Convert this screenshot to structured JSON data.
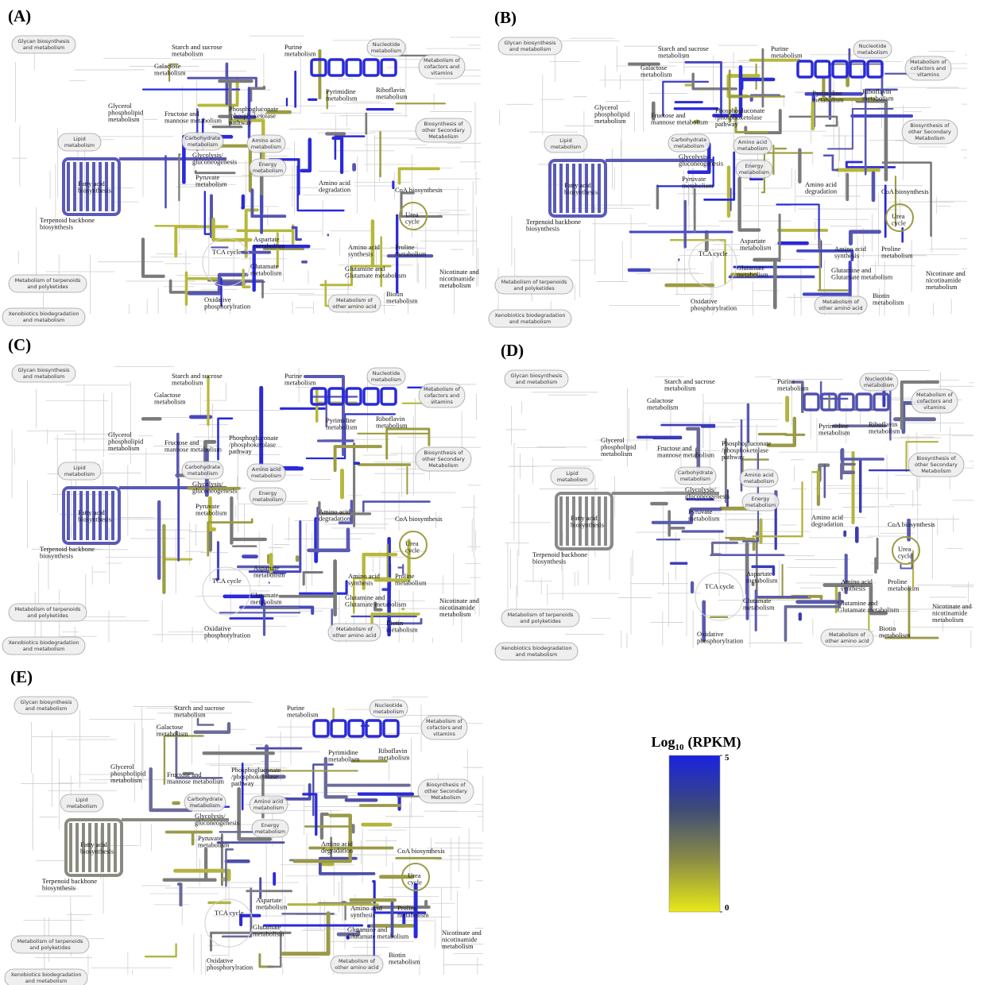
{
  "panels": [
    "(A)",
    "(B)",
    "(C)",
    "(D)",
    "(E)"
  ],
  "pathway_groups": [
    [
      "Glycan biosynthesis",
      "and metabolism"
    ],
    [
      "Nucleotide",
      "metabolism"
    ],
    [
      "Metabolism of",
      "cofactors and",
      "vitamins"
    ],
    [
      "Biosynthesis of",
      "other Secondary",
      "Metabolism"
    ],
    [
      "Lipid",
      "metabolism"
    ],
    [
      "Carbohydrate",
      "metabolism"
    ],
    [
      "Amino acid",
      "metabolism"
    ],
    [
      "Energy",
      "metabolism"
    ],
    [
      "Metabolism of terpenoids",
      "and polyketides"
    ],
    [
      "Metabolism of",
      "other amino acid"
    ],
    [
      "Xenobiotics biodegradation",
      "and metabolism"
    ]
  ],
  "pathway_labels": [
    [
      "Starch and sucrose",
      "metabolism"
    ],
    [
      "Purine",
      "metabolism"
    ],
    [
      "Galactose",
      "metabolism"
    ],
    [
      "Pyrimidine",
      "metabolism"
    ],
    [
      "Riboflavin",
      "metabolism"
    ],
    [
      "Glycerol",
      "phospholipid",
      "metabolism"
    ],
    [
      "Fructose and",
      "mannose metabolism"
    ],
    [
      "Phosphogluconate",
      "/phosphoketolase",
      "pathway"
    ],
    [
      "Glycolysis/",
      "gluconeogenesis"
    ],
    [
      "Fatty acid",
      "biosynthesis"
    ],
    [
      "Pyruvate",
      "metabolism"
    ],
    [
      "Amino acid",
      "degradation"
    ],
    [
      "CoA biosynthesis"
    ],
    [
      "Urea",
      "cycle"
    ],
    [
      "Terpenoid backbone",
      "biosynthesis"
    ],
    [
      "Aspartate",
      "metabolism"
    ],
    [
      "Amino acid",
      "synthesis"
    ],
    [
      "TCA cycle"
    ],
    [
      "Proline",
      "metabolism"
    ],
    [
      "Glutamate",
      "metabolism"
    ],
    [
      "Glutamine and",
      "Glutamate metabolism"
    ],
    [
      "Nicotinate and",
      "nicotinamide",
      "metabolism"
    ],
    [
      "Biotin",
      "metabolism"
    ],
    [
      "Oxidative",
      "phosphorylration"
    ]
  ],
  "colorbar": {
    "title": {
      "main": "Log",
      "subscript": "10",
      "unit": "(RPKM)"
    },
    "range": [
      0,
      5
    ],
    "ticks": [
      0,
      5
    ],
    "colors": [
      "#e8e818",
      "#8a8c45",
      "#3c4a78",
      "#1a22e0"
    ]
  }
}
